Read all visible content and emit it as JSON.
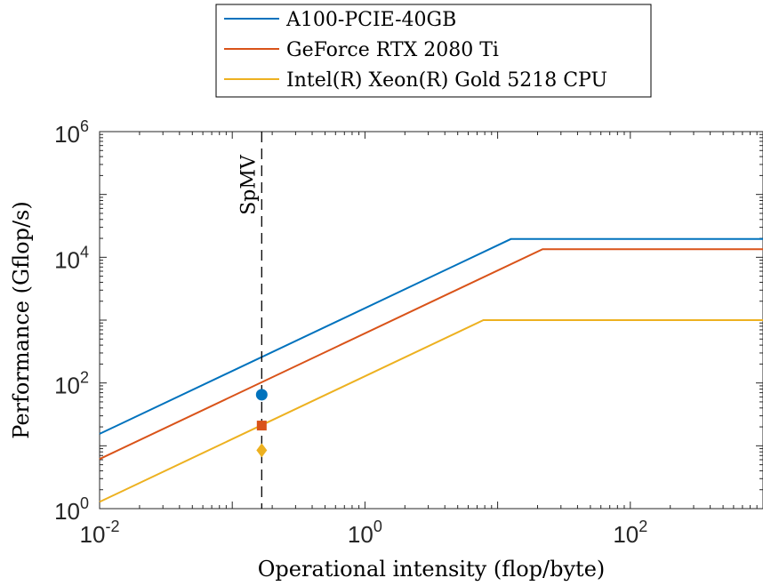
{
  "chart_data": {
    "type": "line",
    "title": "",
    "xlabel": "Operational intensity (flop/byte)",
    "ylabel": "Performance (Gflop/s)",
    "xscale": "log",
    "yscale": "log",
    "xlim": [
      0.01,
      1000
    ],
    "ylim": [
      1,
      1000000
    ],
    "x_ticks": [
      {
        "value": 0.01,
        "base": "10",
        "exp": "-2"
      },
      {
        "value": 1,
        "base": "10",
        "exp": "0"
      },
      {
        "value": 100,
        "base": "10",
        "exp": "2"
      }
    ],
    "y_ticks": [
      {
        "value": 1,
        "base": "10",
        "exp": "0"
      },
      {
        "value": 100,
        "base": "10",
        "exp": "2"
      },
      {
        "value": 10000,
        "base": "10",
        "exp": "4"
      },
      {
        "value": 1000000,
        "base": "10",
        "exp": "6"
      }
    ],
    "legend_position": "top-center",
    "grid": false,
    "series": [
      {
        "name": "A100-PCIE-40GB",
        "color": "#0072BD",
        "bandwidth": 1550,
        "peak": 19500
      },
      {
        "name": "GeForce RTX 2080 Ti",
        "color": "#D95319",
        "bandwidth": 616,
        "peak": 13450
      },
      {
        "name": "Intel(R) Xeon(R) Gold 5218 CPU",
        "color": "#EDB120",
        "bandwidth": 128,
        "peak": 1000
      }
    ],
    "vertical_line": {
      "x": 0.1667,
      "label": "SpMV",
      "style": "dashed",
      "color": "#000000"
    },
    "points": [
      {
        "series": 0,
        "x": 0.1667,
        "y": 65,
        "marker": "circle"
      },
      {
        "series": 1,
        "x": 0.1667,
        "y": 21,
        "marker": "square"
      },
      {
        "series": 2,
        "x": 0.1667,
        "y": 8.5,
        "marker": "diamond"
      }
    ]
  }
}
